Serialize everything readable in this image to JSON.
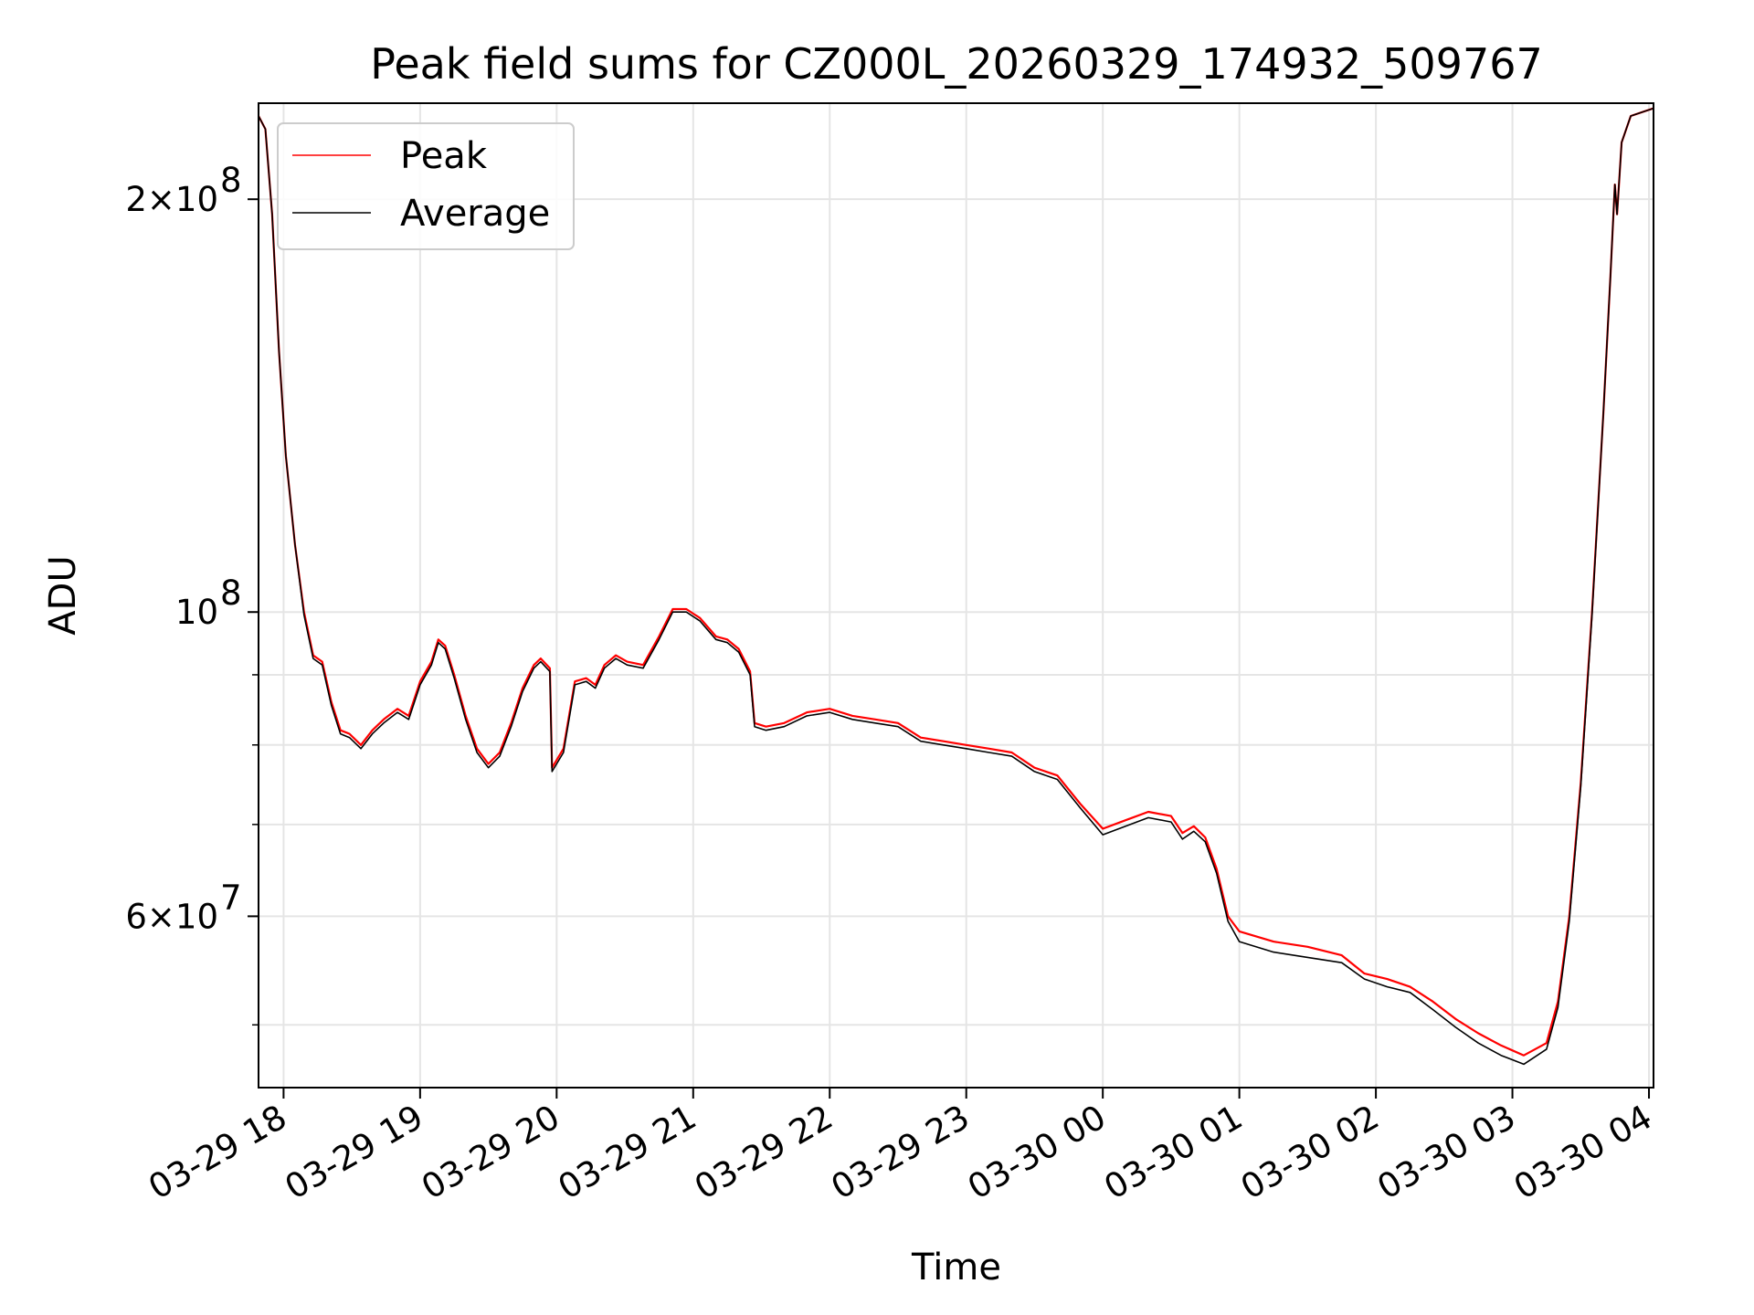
{
  "chart_data": {
    "type": "line",
    "title": "Peak field sums for CZ000L_20260329_174932_509767",
    "xlabel": "Time",
    "ylabel": "ADU",
    "yscale": "log",
    "ylim": [
      45000000,
      235000000
    ],
    "xlim": [
      "2026-03-29 17:49",
      "2026-03-30 04:02"
    ],
    "grid": true,
    "legend_position": "upper left",
    "x_ticks": [
      {
        "t": "2026-03-29 18:00",
        "label": "03-29 18"
      },
      {
        "t": "2026-03-29 19:00",
        "label": "03-29 19"
      },
      {
        "t": "2026-03-29 20:00",
        "label": "03-29 20"
      },
      {
        "t": "2026-03-29 21:00",
        "label": "03-29 21"
      },
      {
        "t": "2026-03-29 22:00",
        "label": "03-29 22"
      },
      {
        "t": "2026-03-29 23:00",
        "label": "03-29 23"
      },
      {
        "t": "2026-03-30 00:00",
        "label": "03-30 00"
      },
      {
        "t": "2026-03-30 01:00",
        "label": "03-30 01"
      },
      {
        "t": "2026-03-30 02:00",
        "label": "03-30 02"
      },
      {
        "t": "2026-03-30 03:00",
        "label": "03-30 03"
      },
      {
        "t": "2026-03-30 04:00",
        "label": "03-30 04"
      }
    ],
    "y_major_ticks": [
      {
        "v": 60000000,
        "base": "6×10",
        "exp": "7"
      },
      {
        "v": 100000000,
        "base": "10",
        "exp": "8"
      },
      {
        "v": 200000000,
        "base": "2×10",
        "exp": "8"
      }
    ],
    "y_minor_ticks": [
      50000000,
      70000000,
      80000000,
      90000000
    ],
    "series": [
      {
        "name": "Peak",
        "color": "#ff0000",
        "points": [
          [
            "2026-03-29 17:49",
            230000000
          ],
          [
            "2026-03-29 17:52",
            225000000
          ],
          [
            "2026-03-29 17:55",
            195000000
          ],
          [
            "2026-03-29 17:58",
            155000000
          ],
          [
            "2026-03-29 18:01",
            130000000
          ],
          [
            "2026-03-29 18:05",
            112000000
          ],
          [
            "2026-03-29 18:09",
            100000000
          ],
          [
            "2026-03-29 18:13",
            93000000
          ],
          [
            "2026-03-29 18:17",
            92000000
          ],
          [
            "2026-03-29 18:21",
            86000000
          ],
          [
            "2026-03-29 18:25",
            82000000
          ],
          [
            "2026-03-29 18:29",
            81500000
          ],
          [
            "2026-03-29 18:34",
            80000000
          ],
          [
            "2026-03-29 18:39",
            82000000
          ],
          [
            "2026-03-29 18:44",
            83500000
          ],
          [
            "2026-03-29 18:50",
            85000000
          ],
          [
            "2026-03-29 18:55",
            84000000
          ],
          [
            "2026-03-29 19:00",
            89000000
          ],
          [
            "2026-03-29 19:05",
            92000000
          ],
          [
            "2026-03-29 19:08",
            95500000
          ],
          [
            "2026-03-29 19:11",
            94500000
          ],
          [
            "2026-03-29 19:15",
            90000000
          ],
          [
            "2026-03-29 19:20",
            84000000
          ],
          [
            "2026-03-29 19:25",
            79500000
          ],
          [
            "2026-03-29 19:30",
            77500000
          ],
          [
            "2026-03-29 19:35",
            79000000
          ],
          [
            "2026-03-29 19:40",
            83000000
          ],
          [
            "2026-03-29 19:45",
            88000000
          ],
          [
            "2026-03-29 19:50",
            91500000
          ],
          [
            "2026-03-29 19:53",
            92500000
          ],
          [
            "2026-03-29 19:57",
            91000000
          ],
          [
            "2026-03-29 19:58",
            77000000
          ],
          [
            "2026-03-29 20:03",
            79500000
          ],
          [
            "2026-03-29 20:08",
            89000000
          ],
          [
            "2026-03-29 20:13",
            89500000
          ],
          [
            "2026-03-29 20:17",
            88500000
          ],
          [
            "2026-03-29 20:21",
            91500000
          ],
          [
            "2026-03-29 20:26",
            93000000
          ],
          [
            "2026-03-29 20:31",
            92000000
          ],
          [
            "2026-03-29 20:38",
            91500000
          ],
          [
            "2026-03-29 20:45",
            96000000
          ],
          [
            "2026-03-29 20:51",
            100500000
          ],
          [
            "2026-03-29 20:57",
            100500000
          ],
          [
            "2026-03-29 21:03",
            99000000
          ],
          [
            "2026-03-29 21:10",
            96000000
          ],
          [
            "2026-03-29 21:15",
            95500000
          ],
          [
            "2026-03-29 21:20",
            94000000
          ],
          [
            "2026-03-29 21:25",
            90500000
          ],
          [
            "2026-03-29 21:27",
            83000000
          ],
          [
            "2026-03-29 21:32",
            82500000
          ],
          [
            "2026-03-29 21:40",
            83000000
          ],
          [
            "2026-03-29 21:50",
            84500000
          ],
          [
            "2026-03-29 22:00",
            85000000
          ],
          [
            "2026-03-29 22:10",
            84000000
          ],
          [
            "2026-03-29 22:20",
            83500000
          ],
          [
            "2026-03-29 22:30",
            83000000
          ],
          [
            "2026-03-29 22:40",
            81000000
          ],
          [
            "2026-03-29 22:50",
            80500000
          ],
          [
            "2026-03-29 23:00",
            80000000
          ],
          [
            "2026-03-29 23:10",
            79500000
          ],
          [
            "2026-03-29 23:20",
            79000000
          ],
          [
            "2026-03-29 23:30",
            77000000
          ],
          [
            "2026-03-29 23:40",
            76000000
          ],
          [
            "2026-03-29 23:50",
            72500000
          ],
          [
            "2026-03-30 00:00",
            69500000
          ],
          [
            "2026-03-30 00:10",
            70500000
          ],
          [
            "2026-03-30 00:20",
            71500000
          ],
          [
            "2026-03-30 00:30",
            71000000
          ],
          [
            "2026-03-30 00:35",
            69000000
          ],
          [
            "2026-03-30 00:40",
            69800000
          ],
          [
            "2026-03-30 00:45",
            68500000
          ],
          [
            "2026-03-30 00:50",
            65000000
          ],
          [
            "2026-03-30 00:55",
            60000000
          ],
          [
            "2026-03-30 01:00",
            58500000
          ],
          [
            "2026-03-30 01:15",
            57500000
          ],
          [
            "2026-03-30 01:30",
            57000000
          ],
          [
            "2026-03-30 01:45",
            56200000
          ],
          [
            "2026-03-30 01:55",
            54500000
          ],
          [
            "2026-03-30 02:05",
            54000000
          ],
          [
            "2026-03-30 02:15",
            53300000
          ],
          [
            "2026-03-30 02:25",
            52000000
          ],
          [
            "2026-03-30 02:35",
            50500000
          ],
          [
            "2026-03-30 02:45",
            49300000
          ],
          [
            "2026-03-30 02:55",
            48300000
          ],
          [
            "2026-03-30 03:05",
            47500000
          ],
          [
            "2026-03-30 03:15",
            48500000
          ],
          [
            "2026-03-30 03:20",
            52000000
          ],
          [
            "2026-03-30 03:25",
            60000000
          ],
          [
            "2026-03-30 03:30",
            75000000
          ],
          [
            "2026-03-30 03:35",
            100000000
          ],
          [
            "2026-03-30 03:40",
            140000000
          ],
          [
            "2026-03-30 03:43",
            175000000
          ],
          [
            "2026-03-30 03:45",
            205000000
          ],
          [
            "2026-03-30 03:46",
            195000000
          ],
          [
            "2026-03-30 03:48",
            220000000
          ],
          [
            "2026-03-30 03:52",
            230000000
          ],
          [
            "2026-03-30 04:02",
            233000000
          ]
        ]
      },
      {
        "name": "Average",
        "color": "#000000",
        "points": [
          [
            "2026-03-29 17:49",
            230000000
          ],
          [
            "2026-03-29 17:52",
            225000000
          ],
          [
            "2026-03-29 17:55",
            195000000
          ],
          [
            "2026-03-29 17:58",
            155000000
          ],
          [
            "2026-03-29 18:01",
            130000000
          ],
          [
            "2026-03-29 18:05",
            112000000
          ],
          [
            "2026-03-29 18:09",
            99500000
          ],
          [
            "2026-03-29 18:13",
            92500000
          ],
          [
            "2026-03-29 18:17",
            91500000
          ],
          [
            "2026-03-29 18:21",
            85500000
          ],
          [
            "2026-03-29 18:25",
            81500000
          ],
          [
            "2026-03-29 18:29",
            81000000
          ],
          [
            "2026-03-29 18:34",
            79500000
          ],
          [
            "2026-03-29 18:39",
            81500000
          ],
          [
            "2026-03-29 18:44",
            83000000
          ],
          [
            "2026-03-29 18:50",
            84500000
          ],
          [
            "2026-03-29 18:55",
            83500000
          ],
          [
            "2026-03-29 19:00",
            88500000
          ],
          [
            "2026-03-29 19:05",
            91500000
          ],
          [
            "2026-03-29 19:08",
            95000000
          ],
          [
            "2026-03-29 19:11",
            94000000
          ],
          [
            "2026-03-29 19:15",
            89500000
          ],
          [
            "2026-03-29 19:20",
            83500000
          ],
          [
            "2026-03-29 19:25",
            79000000
          ],
          [
            "2026-03-29 19:30",
            77000000
          ],
          [
            "2026-03-29 19:35",
            78500000
          ],
          [
            "2026-03-29 19:40",
            82500000
          ],
          [
            "2026-03-29 19:45",
            87500000
          ],
          [
            "2026-03-29 19:50",
            91000000
          ],
          [
            "2026-03-29 19:53",
            92000000
          ],
          [
            "2026-03-29 19:57",
            90500000
          ],
          [
            "2026-03-29 19:58",
            76500000
          ],
          [
            "2026-03-29 20:03",
            79000000
          ],
          [
            "2026-03-29 20:08",
            88500000
          ],
          [
            "2026-03-29 20:13",
            89000000
          ],
          [
            "2026-03-29 20:17",
            88000000
          ],
          [
            "2026-03-29 20:21",
            91000000
          ],
          [
            "2026-03-29 20:26",
            92500000
          ],
          [
            "2026-03-29 20:31",
            91500000
          ],
          [
            "2026-03-29 20:38",
            91000000
          ],
          [
            "2026-03-29 20:45",
            95500000
          ],
          [
            "2026-03-29 20:51",
            100000000
          ],
          [
            "2026-03-29 20:57",
            100000000
          ],
          [
            "2026-03-29 21:03",
            98500000
          ],
          [
            "2026-03-29 21:10",
            95500000
          ],
          [
            "2026-03-29 21:15",
            95000000
          ],
          [
            "2026-03-29 21:20",
            93500000
          ],
          [
            "2026-03-29 21:25",
            90000000
          ],
          [
            "2026-03-29 21:27",
            82500000
          ],
          [
            "2026-03-29 21:32",
            82000000
          ],
          [
            "2026-03-29 21:40",
            82500000
          ],
          [
            "2026-03-29 21:50",
            84000000
          ],
          [
            "2026-03-29 22:00",
            84500000
          ],
          [
            "2026-03-29 22:10",
            83500000
          ],
          [
            "2026-03-29 22:20",
            83000000
          ],
          [
            "2026-03-29 22:30",
            82500000
          ],
          [
            "2026-03-29 22:40",
            80500000
          ],
          [
            "2026-03-29 22:50",
            80000000
          ],
          [
            "2026-03-29 23:00",
            79500000
          ],
          [
            "2026-03-29 23:10",
            79000000
          ],
          [
            "2026-03-29 23:20",
            78500000
          ],
          [
            "2026-03-29 23:30",
            76500000
          ],
          [
            "2026-03-29 23:40",
            75500000
          ],
          [
            "2026-03-29 23:50",
            72000000
          ],
          [
            "2026-03-30 00:00",
            68800000
          ],
          [
            "2026-03-30 00:10",
            69800000
          ],
          [
            "2026-03-30 00:20",
            70800000
          ],
          [
            "2026-03-30 00:30",
            70300000
          ],
          [
            "2026-03-30 00:35",
            68300000
          ],
          [
            "2026-03-30 00:40",
            69200000
          ],
          [
            "2026-03-30 00:45",
            68000000
          ],
          [
            "2026-03-30 00:50",
            64500000
          ],
          [
            "2026-03-30 00:55",
            59500000
          ],
          [
            "2026-03-30 01:00",
            57500000
          ],
          [
            "2026-03-30 01:15",
            56500000
          ],
          [
            "2026-03-30 01:30",
            56000000
          ],
          [
            "2026-03-30 01:45",
            55500000
          ],
          [
            "2026-03-30 01:55",
            54000000
          ],
          [
            "2026-03-30 02:05",
            53300000
          ],
          [
            "2026-03-30 02:15",
            52800000
          ],
          [
            "2026-03-30 02:25",
            51300000
          ],
          [
            "2026-03-30 02:35",
            49800000
          ],
          [
            "2026-03-30 02:45",
            48500000
          ],
          [
            "2026-03-30 02:55",
            47500000
          ],
          [
            "2026-03-30 03:05",
            46800000
          ],
          [
            "2026-03-30 03:15",
            48000000
          ],
          [
            "2026-03-30 03:20",
            51500000
          ],
          [
            "2026-03-30 03:25",
            59500000
          ],
          [
            "2026-03-30 03:30",
            74500000
          ],
          [
            "2026-03-30 03:35",
            99500000
          ],
          [
            "2026-03-30 03:40",
            140000000
          ],
          [
            "2026-03-30 03:43",
            175000000
          ],
          [
            "2026-03-30 03:45",
            205000000
          ],
          [
            "2026-03-30 03:46",
            195000000
          ],
          [
            "2026-03-30 03:48",
            220000000
          ],
          [
            "2026-03-30 03:52",
            230000000
          ],
          [
            "2026-03-30 04:02",
            233000000
          ]
        ]
      }
    ]
  }
}
